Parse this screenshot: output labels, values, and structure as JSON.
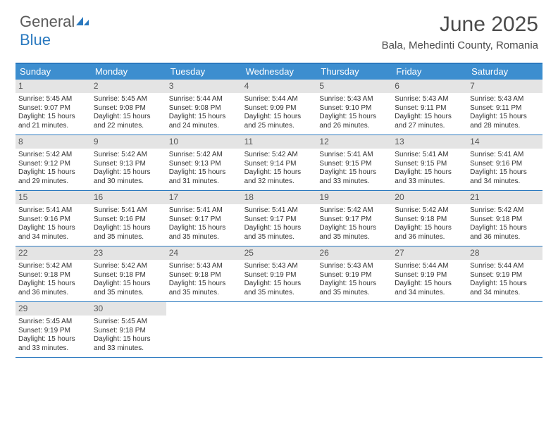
{
  "brand": {
    "name_a": "General",
    "name_b": "Blue"
  },
  "title": "June 2025",
  "location": "Bala, Mehedinti County, Romania",
  "colors": {
    "accent": "#3d8ecf",
    "accent_border": "#2a79bf",
    "daynum_bg": "#e4e4e4",
    "text": "#333333",
    "background": "#ffffff"
  },
  "weekdays": [
    "Sunday",
    "Monday",
    "Tuesday",
    "Wednesday",
    "Thursday",
    "Friday",
    "Saturday"
  ],
  "days": [
    {
      "n": 1,
      "sr": "5:45 AM",
      "ss": "9:07 PM",
      "dlh": 15,
      "dlm": 21
    },
    {
      "n": 2,
      "sr": "5:45 AM",
      "ss": "9:08 PM",
      "dlh": 15,
      "dlm": 22
    },
    {
      "n": 3,
      "sr": "5:44 AM",
      "ss": "9:08 PM",
      "dlh": 15,
      "dlm": 24
    },
    {
      "n": 4,
      "sr": "5:44 AM",
      "ss": "9:09 PM",
      "dlh": 15,
      "dlm": 25
    },
    {
      "n": 5,
      "sr": "5:43 AM",
      "ss": "9:10 PM",
      "dlh": 15,
      "dlm": 26
    },
    {
      "n": 6,
      "sr": "5:43 AM",
      "ss": "9:11 PM",
      "dlh": 15,
      "dlm": 27
    },
    {
      "n": 7,
      "sr": "5:43 AM",
      "ss": "9:11 PM",
      "dlh": 15,
      "dlm": 28
    },
    {
      "n": 8,
      "sr": "5:42 AM",
      "ss": "9:12 PM",
      "dlh": 15,
      "dlm": 29
    },
    {
      "n": 9,
      "sr": "5:42 AM",
      "ss": "9:13 PM",
      "dlh": 15,
      "dlm": 30
    },
    {
      "n": 10,
      "sr": "5:42 AM",
      "ss": "9:13 PM",
      "dlh": 15,
      "dlm": 31
    },
    {
      "n": 11,
      "sr": "5:42 AM",
      "ss": "9:14 PM",
      "dlh": 15,
      "dlm": 32
    },
    {
      "n": 12,
      "sr": "5:41 AM",
      "ss": "9:15 PM",
      "dlh": 15,
      "dlm": 33
    },
    {
      "n": 13,
      "sr": "5:41 AM",
      "ss": "9:15 PM",
      "dlh": 15,
      "dlm": 33
    },
    {
      "n": 14,
      "sr": "5:41 AM",
      "ss": "9:16 PM",
      "dlh": 15,
      "dlm": 34
    },
    {
      "n": 15,
      "sr": "5:41 AM",
      "ss": "9:16 PM",
      "dlh": 15,
      "dlm": 34
    },
    {
      "n": 16,
      "sr": "5:41 AM",
      "ss": "9:16 PM",
      "dlh": 15,
      "dlm": 35
    },
    {
      "n": 17,
      "sr": "5:41 AM",
      "ss": "9:17 PM",
      "dlh": 15,
      "dlm": 35
    },
    {
      "n": 18,
      "sr": "5:41 AM",
      "ss": "9:17 PM",
      "dlh": 15,
      "dlm": 35
    },
    {
      "n": 19,
      "sr": "5:42 AM",
      "ss": "9:17 PM",
      "dlh": 15,
      "dlm": 35
    },
    {
      "n": 20,
      "sr": "5:42 AM",
      "ss": "9:18 PM",
      "dlh": 15,
      "dlm": 36
    },
    {
      "n": 21,
      "sr": "5:42 AM",
      "ss": "9:18 PM",
      "dlh": 15,
      "dlm": 36
    },
    {
      "n": 22,
      "sr": "5:42 AM",
      "ss": "9:18 PM",
      "dlh": 15,
      "dlm": 36
    },
    {
      "n": 23,
      "sr": "5:42 AM",
      "ss": "9:18 PM",
      "dlh": 15,
      "dlm": 35
    },
    {
      "n": 24,
      "sr": "5:43 AM",
      "ss": "9:18 PM",
      "dlh": 15,
      "dlm": 35
    },
    {
      "n": 25,
      "sr": "5:43 AM",
      "ss": "9:19 PM",
      "dlh": 15,
      "dlm": 35
    },
    {
      "n": 26,
      "sr": "5:43 AM",
      "ss": "9:19 PM",
      "dlh": 15,
      "dlm": 35
    },
    {
      "n": 27,
      "sr": "5:44 AM",
      "ss": "9:19 PM",
      "dlh": 15,
      "dlm": 34
    },
    {
      "n": 28,
      "sr": "5:44 AM",
      "ss": "9:19 PM",
      "dlh": 15,
      "dlm": 34
    },
    {
      "n": 29,
      "sr": "5:45 AM",
      "ss": "9:19 PM",
      "dlh": 15,
      "dlm": 33
    },
    {
      "n": 30,
      "sr": "5:45 AM",
      "ss": "9:18 PM",
      "dlh": 15,
      "dlm": 33
    }
  ],
  "labels": {
    "sunrise": "Sunrise:",
    "sunset": "Sunset:",
    "daylight": "Daylight:",
    "hours": "hours",
    "and": "and",
    "minutes": "minutes."
  },
  "layout": {
    "first_weekday_index": 0,
    "cols": 7,
    "fontsize_day": 10,
    "fontsize_weekday": 13,
    "fontsize_title": 30,
    "fontsize_location": 15
  }
}
